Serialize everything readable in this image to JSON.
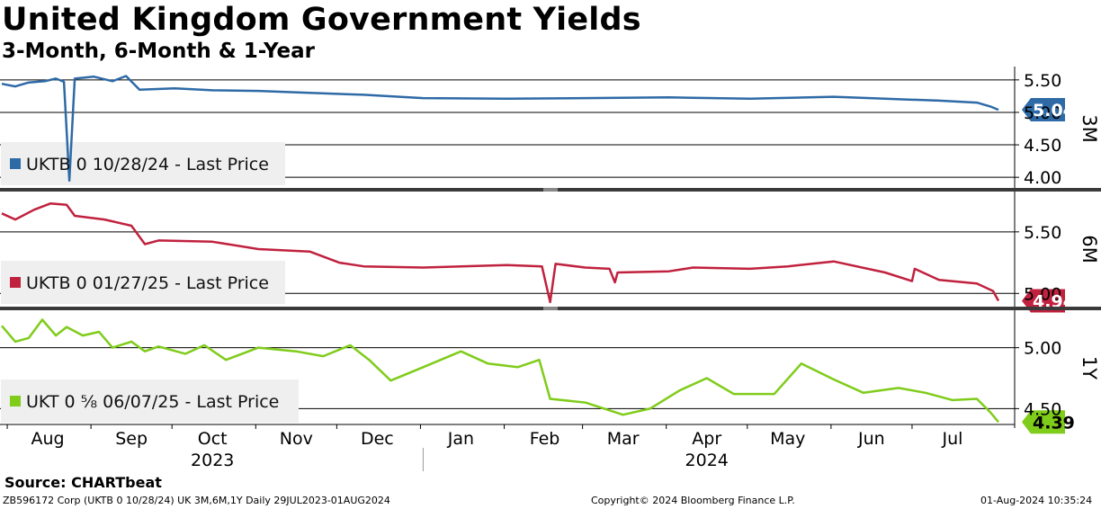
{
  "header": {
    "title": "United Kingdom Government Yields",
    "subtitle": "3-Month, 6-Month & 1-Year"
  },
  "footer": {
    "source": "Source:  CHARTbeat",
    "ticker_info": "ZB596172 Corp (UKTB 0 10/28/24) UK 3M,6M,1Y  Daily 29JUL2023-01AUG2024",
    "copyright": "Copyright© 2024 Bloomberg Finance L.P.",
    "timestamp": "01-Aug-2024 10:35:24"
  },
  "colors": {
    "series_3m": "#2e6aa6",
    "series_6m": "#c0213e",
    "series_1y": "#7fcc1a"
  },
  "chart_data": {
    "type": "line",
    "x_axis": {
      "range": [
        "2023-07-29",
        "2024-08-01"
      ],
      "months": [
        {
          "label": "Aug",
          "date": "2023-08-15"
        },
        {
          "label": "Sep",
          "date": "2023-09-15"
        },
        {
          "label": "Oct",
          "date": "2023-10-15"
        },
        {
          "label": "Nov",
          "date": "2023-11-15"
        },
        {
          "label": "Dec",
          "date": "2023-12-15"
        },
        {
          "label": "Jan",
          "date": "2024-01-15"
        },
        {
          "label": "Feb",
          "date": "2024-02-15"
        },
        {
          "label": "Mar",
          "date": "2024-03-15"
        },
        {
          "label": "Apr",
          "date": "2024-04-15"
        },
        {
          "label": "May",
          "date": "2024-05-15"
        },
        {
          "label": "Jun",
          "date": "2024-06-15"
        },
        {
          "label": "Jul",
          "date": "2024-07-15"
        }
      ],
      "years": [
        {
          "label": "2023",
          "date": "2023-10-15"
        },
        {
          "label": "2024",
          "date": "2024-04-15"
        }
      ],
      "year_divider": "2024-01-01"
    },
    "panels": [
      {
        "id": "3m",
        "axis_label": "3M",
        "legend": "UKTB 0 10/28/24 - Last Price",
        "last_value": "5.04",
        "ylim": [
          3.85,
          5.65
        ],
        "ticks": [
          "5.50",
          "5.00",
          "4.50",
          "4.00"
        ],
        "points": [
          [
            "2023-07-29",
            5.44
          ],
          [
            "2023-08-03",
            5.4
          ],
          [
            "2023-08-08",
            5.46
          ],
          [
            "2023-08-14",
            5.48
          ],
          [
            "2023-08-18",
            5.52
          ],
          [
            "2023-08-21",
            5.47
          ],
          [
            "2023-08-23",
            3.95
          ],
          [
            "2023-08-25",
            5.52
          ],
          [
            "2023-09-01",
            5.55
          ],
          [
            "2023-09-08",
            5.48
          ],
          [
            "2023-09-13",
            5.56
          ],
          [
            "2023-09-18",
            5.35
          ],
          [
            "2023-10-01",
            5.37
          ],
          [
            "2023-10-15",
            5.34
          ],
          [
            "2023-11-01",
            5.33
          ],
          [
            "2023-11-20",
            5.3
          ],
          [
            "2023-12-10",
            5.27
          ],
          [
            "2024-01-01",
            5.22
          ],
          [
            "2024-02-01",
            5.21
          ],
          [
            "2024-03-01",
            5.22
          ],
          [
            "2024-04-01",
            5.23
          ],
          [
            "2024-05-01",
            5.21
          ],
          [
            "2024-06-01",
            5.24
          ],
          [
            "2024-06-20",
            5.21
          ],
          [
            "2024-07-10",
            5.18
          ],
          [
            "2024-07-24",
            5.15
          ],
          [
            "2024-07-29",
            5.09
          ],
          [
            "2024-08-01",
            5.04
          ]
        ]
      },
      {
        "id": "6m",
        "axis_label": "6M",
        "legend": "UKTB 0 01/27/25 - Last Price",
        "last_value": "4.94",
        "ylim": [
          4.9,
          5.82
        ],
        "ticks": [
          "5.50",
          "5.00"
        ],
        "points": [
          [
            "2023-07-29",
            5.65
          ],
          [
            "2023-08-03",
            5.6
          ],
          [
            "2023-08-10",
            5.68
          ],
          [
            "2023-08-16",
            5.73
          ],
          [
            "2023-08-22",
            5.72
          ],
          [
            "2023-08-25",
            5.63
          ],
          [
            "2023-09-05",
            5.6
          ],
          [
            "2023-09-15",
            5.55
          ],
          [
            "2023-09-20",
            5.4
          ],
          [
            "2023-09-25",
            5.43
          ],
          [
            "2023-10-15",
            5.42
          ],
          [
            "2023-11-01",
            5.36
          ],
          [
            "2023-11-20",
            5.34
          ],
          [
            "2023-12-01",
            5.25
          ],
          [
            "2023-12-10",
            5.22
          ],
          [
            "2024-01-01",
            5.21
          ],
          [
            "2024-02-01",
            5.23
          ],
          [
            "2024-02-14",
            5.22
          ],
          [
            "2024-02-17",
            4.93
          ],
          [
            "2024-02-19",
            5.24
          ],
          [
            "2024-03-01",
            5.21
          ],
          [
            "2024-03-10",
            5.2
          ],
          [
            "2024-03-12",
            5.09
          ],
          [
            "2024-03-13",
            5.17
          ],
          [
            "2024-04-01",
            5.18
          ],
          [
            "2024-04-10",
            5.21
          ],
          [
            "2024-05-01",
            5.2
          ],
          [
            "2024-05-15",
            5.22
          ],
          [
            "2024-06-01",
            5.26
          ],
          [
            "2024-06-20",
            5.17
          ],
          [
            "2024-06-30",
            5.1
          ],
          [
            "2024-07-01",
            5.2
          ],
          [
            "2024-07-10",
            5.11
          ],
          [
            "2024-07-24",
            5.08
          ],
          [
            "2024-07-30",
            5.02
          ],
          [
            "2024-08-01",
            4.94
          ]
        ]
      },
      {
        "id": "1y",
        "axis_label": "1Y",
        "legend": "UKT 0 ⅝ 06/07/25 - Last Price",
        "last_value": "4.39",
        "ylim": [
          4.37,
          5.3
        ],
        "ticks": [
          "5.00",
          "4.50"
        ],
        "points": [
          [
            "2023-07-29",
            5.18
          ],
          [
            "2023-08-03",
            5.05
          ],
          [
            "2023-08-08",
            5.08
          ],
          [
            "2023-08-13",
            5.23
          ],
          [
            "2023-08-18",
            5.1
          ],
          [
            "2023-08-22",
            5.17
          ],
          [
            "2023-08-28",
            5.1
          ],
          [
            "2023-09-03",
            5.13
          ],
          [
            "2023-09-08",
            5.0
          ],
          [
            "2023-09-15",
            5.05
          ],
          [
            "2023-09-20",
            4.97
          ],
          [
            "2023-09-25",
            5.01
          ],
          [
            "2023-10-05",
            4.95
          ],
          [
            "2023-10-12",
            5.02
          ],
          [
            "2023-10-20",
            4.9
          ],
          [
            "2023-11-01",
            5.0
          ],
          [
            "2023-11-15",
            4.97
          ],
          [
            "2023-11-25",
            4.93
          ],
          [
            "2023-12-05",
            5.02
          ],
          [
            "2023-12-12",
            4.9
          ],
          [
            "2023-12-20",
            4.73
          ],
          [
            "2024-01-01",
            4.84
          ],
          [
            "2024-01-15",
            4.97
          ],
          [
            "2024-01-25",
            4.87
          ],
          [
            "2024-02-05",
            4.84
          ],
          [
            "2024-02-13",
            4.9
          ],
          [
            "2024-02-17",
            4.58
          ],
          [
            "2024-03-01",
            4.55
          ],
          [
            "2024-03-15",
            4.45
          ],
          [
            "2024-03-25",
            4.5
          ],
          [
            "2024-04-05",
            4.65
          ],
          [
            "2024-04-15",
            4.75
          ],
          [
            "2024-04-25",
            4.62
          ],
          [
            "2024-05-10",
            4.62
          ],
          [
            "2024-05-20",
            4.87
          ],
          [
            "2024-06-01",
            4.74
          ],
          [
            "2024-06-12",
            4.63
          ],
          [
            "2024-06-25",
            4.67
          ],
          [
            "2024-07-05",
            4.63
          ],
          [
            "2024-07-15",
            4.57
          ],
          [
            "2024-07-24",
            4.58
          ],
          [
            "2024-07-29",
            4.47
          ],
          [
            "2024-08-01",
            4.39
          ]
        ]
      }
    ]
  }
}
